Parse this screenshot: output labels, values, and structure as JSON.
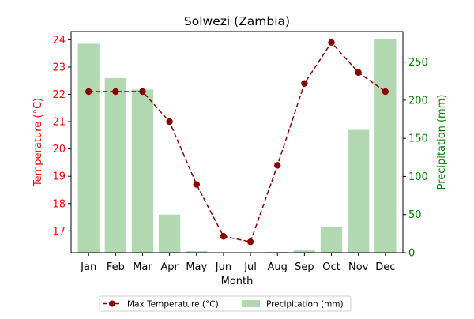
{
  "chart_data": {
    "type": "bar",
    "title": "Solwezi (Zambia)",
    "xlabel": "Month",
    "ylabel_left": "Temperature (°C)",
    "ylabel_right": "Precipitation (mm)",
    "categories": [
      "Jan",
      "Feb",
      "Mar",
      "Apr",
      "May",
      "Jun",
      "Jul",
      "Aug",
      "Sep",
      "Oct",
      "Nov",
      "Dec"
    ],
    "ylim_left": [
      16.2,
      24.3
    ],
    "ylim_right": [
      0,
      290
    ],
    "yticks_left": [
      17,
      18,
      19,
      20,
      21,
      22,
      23,
      24
    ],
    "yticks_right": [
      0,
      50,
      100,
      150,
      200,
      250
    ],
    "series": [
      {
        "name": "Max Temperature (°C)",
        "kind": "line",
        "axis": "left",
        "color": "#8b0000",
        "values": [
          22.1,
          22.1,
          22.1,
          21.0,
          18.7,
          16.8,
          16.6,
          19.4,
          22.4,
          23.9,
          22.8,
          22.1
        ]
      },
      {
        "name": "Precipitation (mm)",
        "kind": "bar",
        "axis": "right",
        "color": "#b2d8b2",
        "values": [
          274,
          229,
          214,
          50,
          2,
          0,
          0,
          1,
          3,
          34,
          161,
          280
        ]
      }
    ],
    "left_axis_color": "#ff0000",
    "right_axis_color": "#008000",
    "legend_position": "bottom-center",
    "grid": false
  }
}
